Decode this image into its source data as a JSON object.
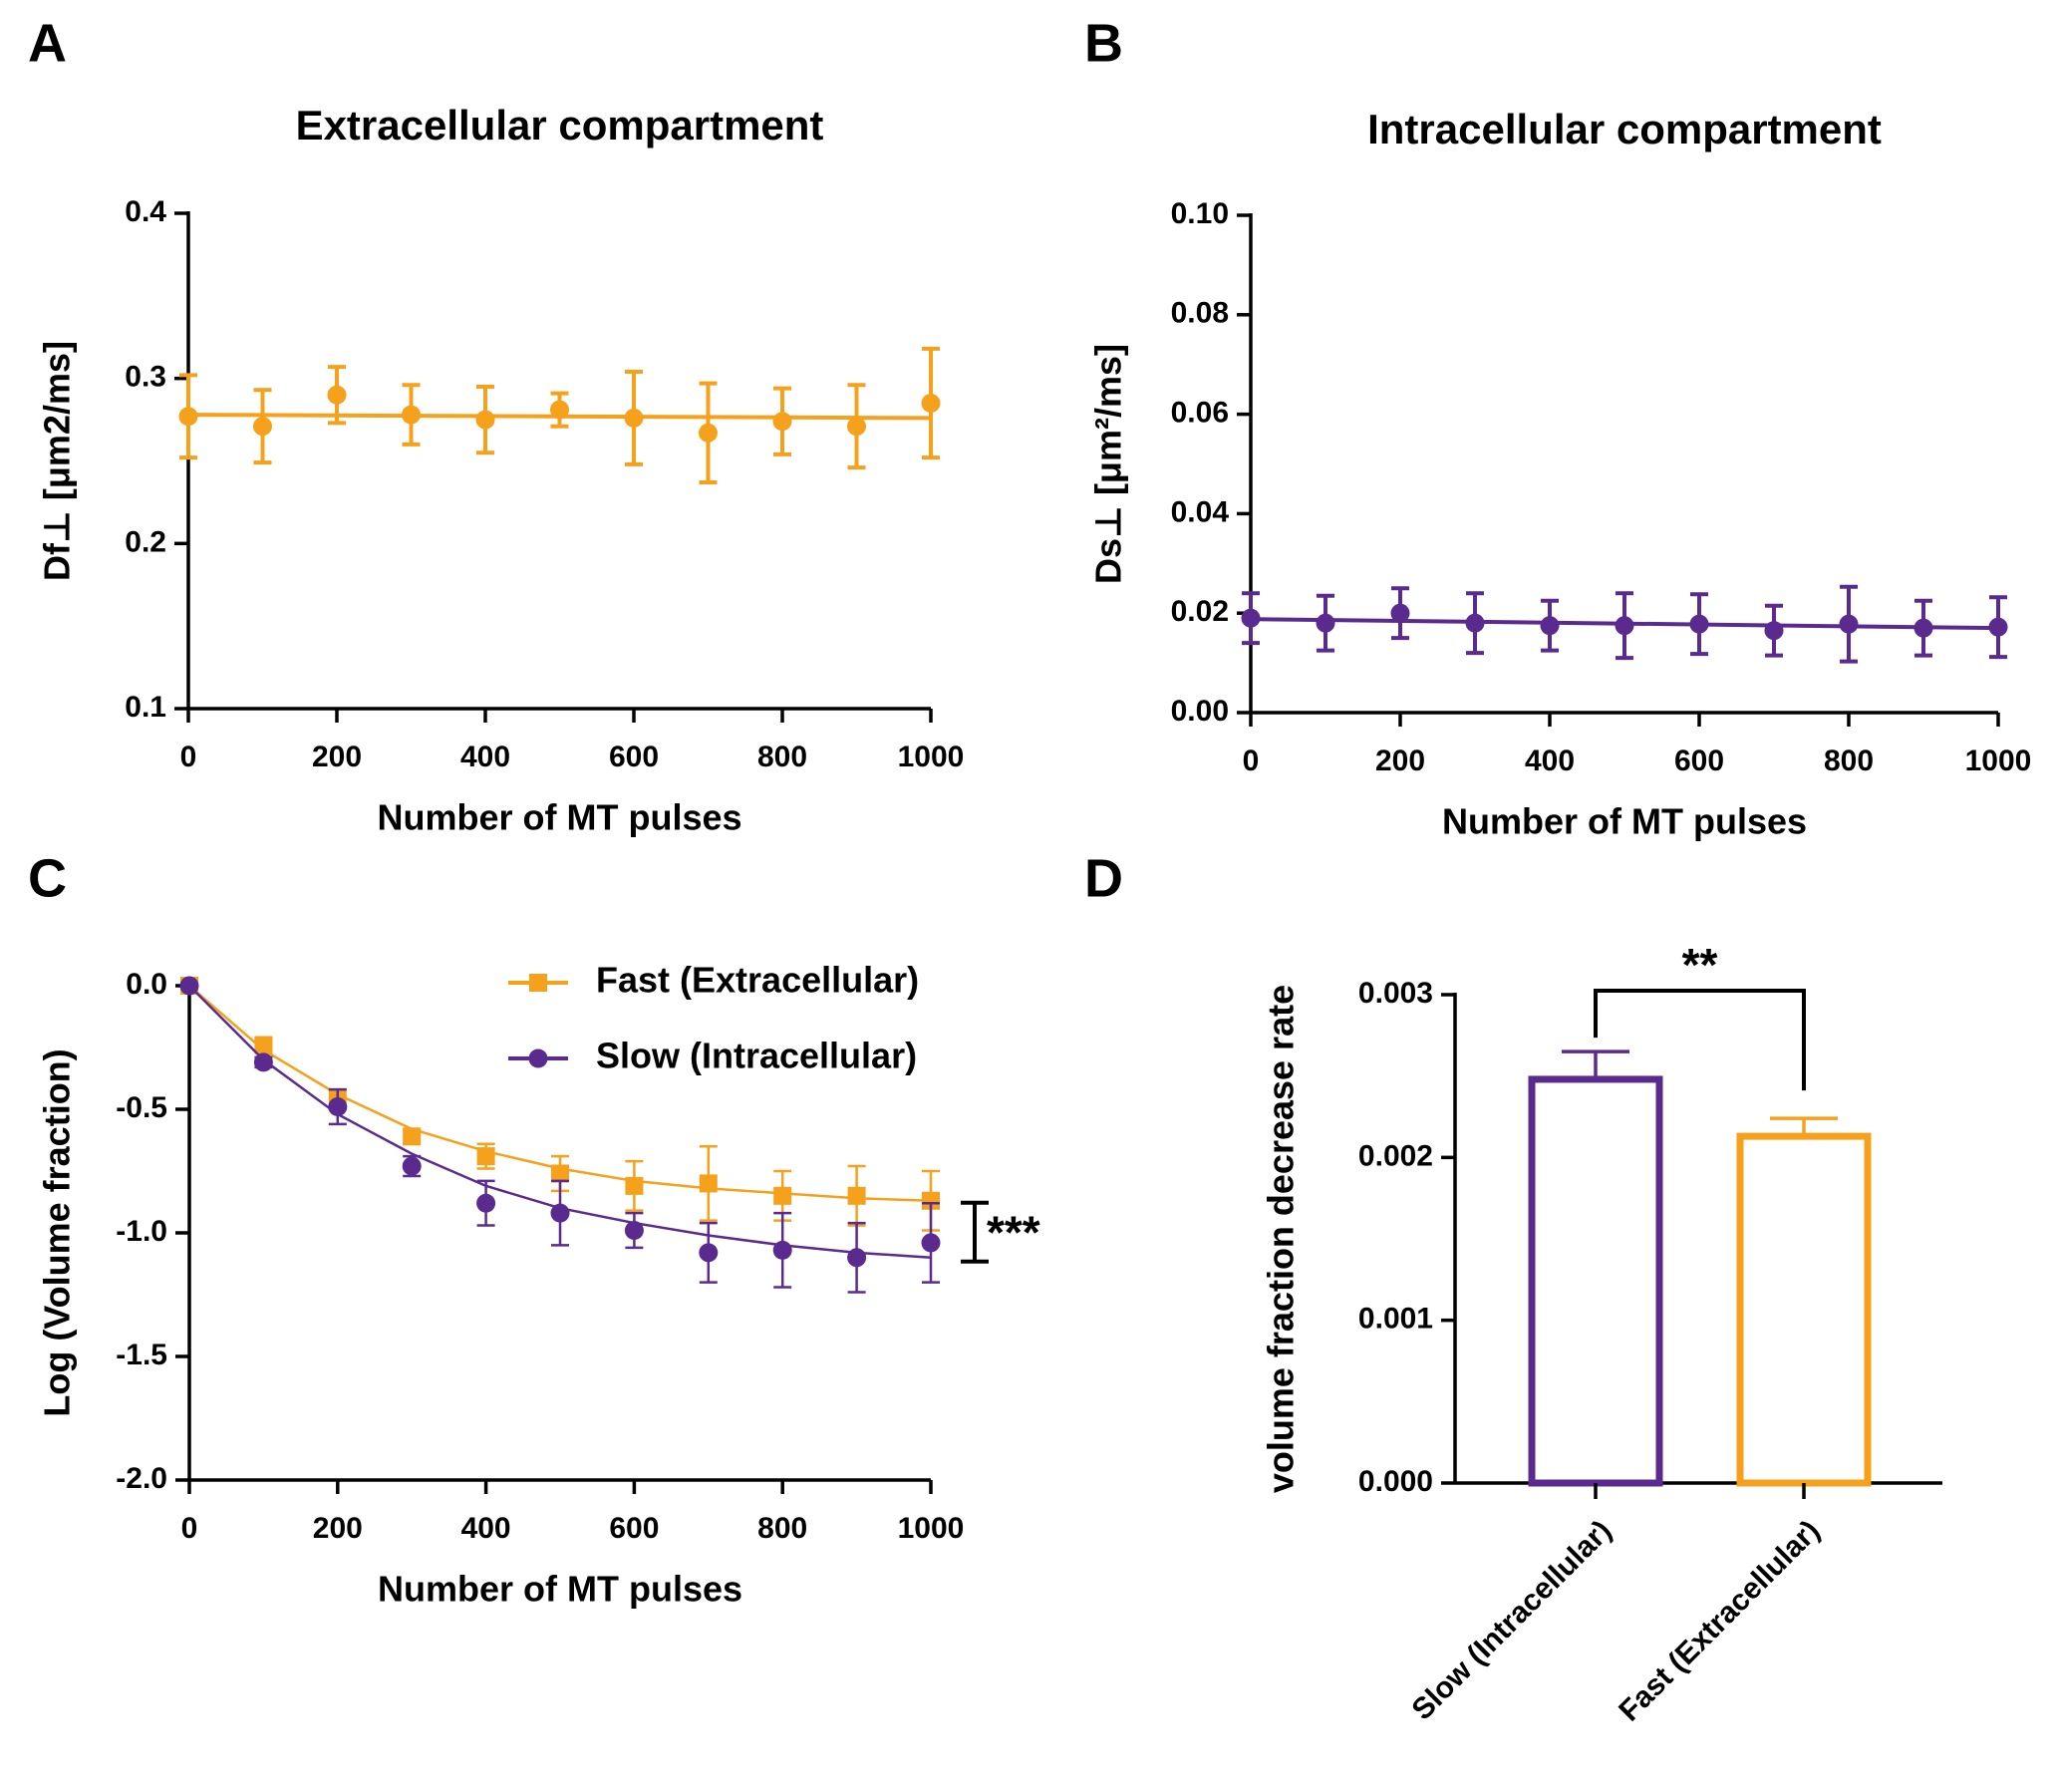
{
  "chart_data": [
    {
      "panel": "A",
      "type": "scatter",
      "title": "Extracellular compartment",
      "x_label": "Number of MT pulses",
      "y_label": "Df⊥ [μm2/ms]",
      "xlim": [
        0,
        1000
      ],
      "ylim": [
        0.1,
        0.4
      ],
      "xticks": [
        0,
        200,
        400,
        600,
        800,
        1000
      ],
      "yticks": [
        0.1,
        0.2,
        0.3,
        0.4
      ],
      "series": [
        {
          "color": "#f5a11c",
          "marker": "circle",
          "x": [
            0,
            100,
            200,
            300,
            400,
            500,
            600,
            700,
            800,
            900,
            1000
          ],
          "values": [
            0.277,
            0.271,
            0.29,
            0.278,
            0.275,
            0.281,
            0.276,
            0.267,
            0.274,
            0.271,
            0.285
          ],
          "errors": [
            0.025,
            0.022,
            0.017,
            0.018,
            0.02,
            0.01,
            0.028,
            0.03,
            0.02,
            0.025,
            0.033
          ],
          "fit_x": [
            0,
            1000
          ],
          "fit_values": [
            0.278,
            0.276
          ]
        }
      ]
    },
    {
      "panel": "B",
      "type": "scatter",
      "title": "Intracellular compartment",
      "x_label": "Number of MT pulses",
      "y_label": "Ds⊥ [μm²/ms]",
      "xlim": [
        0,
        1000
      ],
      "ylim": [
        0,
        0.1
      ],
      "xticks": [
        0,
        200,
        400,
        600,
        800,
        1000
      ],
      "yticks": [
        {
          "value": 0,
          "label": "0.00"
        },
        0.02,
        0.04,
        0.06,
        0.08,
        {
          "value": 0.1,
          "label": "0.10"
        }
      ],
      "series": [
        {
          "color": "#5b2a8e",
          "marker": "circle",
          "x": [
            0,
            100,
            200,
            300,
            400,
            500,
            600,
            700,
            800,
            900,
            1000
          ],
          "values": [
            0.019,
            0.018,
            0.02,
            0.018,
            0.0175,
            0.0175,
            0.0178,
            0.0165,
            0.0178,
            0.017,
            0.0172
          ],
          "errors": [
            0.005,
            0.0055,
            0.005,
            0.006,
            0.005,
            0.0065,
            0.006,
            0.005,
            0.0075,
            0.0055,
            0.006
          ],
          "fit_x": [
            0,
            1000
          ],
          "fit_values": [
            0.0188,
            0.017
          ]
        }
      ]
    },
    {
      "panel": "C",
      "type": "scatter",
      "x_label": "Number of MT pulses",
      "y_label": "Log (Volume fraction)",
      "annotation": "***",
      "xlim": [
        0,
        1000
      ],
      "ylim": [
        -2,
        0
      ],
      "xticks": [
        0,
        200,
        400,
        600,
        800,
        1000
      ],
      "yticks": [
        {
          "value": -2,
          "label": "-2.0"
        },
        -1.5,
        {
          "value": -1,
          "label": "-1.0"
        },
        -0.5,
        {
          "value": 0,
          "label": "0.0"
        }
      ],
      "series": [
        {
          "name": "Fast  (Extracellular)",
          "color": "#f5a11c",
          "marker": "square",
          "x": [
            0,
            100,
            200,
            300,
            400,
            500,
            600,
            700,
            800,
            900,
            1000
          ],
          "values": [
            0,
            -0.24,
            -0.46,
            -0.61,
            -0.69,
            -0.76,
            -0.81,
            -0.8,
            -0.85,
            -0.85,
            -0.87
          ],
          "errors": [
            0,
            0.02,
            0.04,
            0.03,
            0.05,
            0.07,
            0.1,
            0.15,
            0.1,
            0.12,
            0.12
          ],
          "fit_x": [
            0,
            100,
            200,
            300,
            400,
            500,
            600,
            700,
            800,
            900,
            1000
          ],
          "fit_values": [
            0,
            -0.26,
            -0.44,
            -0.58,
            -0.67,
            -0.74,
            -0.79,
            -0.82,
            -0.84,
            -0.86,
            -0.87
          ]
        },
        {
          "name": "Slow (Intracellular)",
          "color": "#5b2a8e",
          "marker": "circle",
          "x": [
            0,
            100,
            200,
            300,
            400,
            500,
            600,
            700,
            800,
            900,
            1000
          ],
          "values": [
            0,
            -0.31,
            -0.49,
            -0.73,
            -0.88,
            -0.92,
            -0.99,
            -1.08,
            -1.07,
            -1.1,
            -1.04
          ],
          "errors": [
            0,
            0.02,
            0.07,
            0.04,
            0.09,
            0.13,
            0.07,
            0.12,
            0.15,
            0.14,
            0.16
          ],
          "fit_x": [
            0,
            100,
            200,
            300,
            400,
            500,
            600,
            700,
            800,
            900,
            1000
          ],
          "fit_values": [
            0,
            -0.3,
            -0.52,
            -0.68,
            -0.81,
            -0.9,
            -0.96,
            -1.01,
            -1.05,
            -1.08,
            -1.1
          ]
        }
      ]
    },
    {
      "panel": "D",
      "type": "bar",
      "y_label": "volume fraction decrease rate",
      "annotation": "**",
      "categories": [
        "Slow (Intracellular)",
        "Fast  (Extracellular)"
      ],
      "values": [
        0.00248,
        0.00213
      ],
      "errors": [
        0.00017,
        0.00011
      ],
      "colors": [
        "#5b2a8e",
        "#f5a11c"
      ],
      "ylim": [
        0,
        0.003
      ],
      "yticks": [
        {
          "value": 0,
          "label": "0.000"
        },
        {
          "value": 0.001,
          "label": "0.001"
        },
        {
          "value": 0.002,
          "label": "0.002"
        },
        {
          "value": 0.003,
          "label": "0.003"
        }
      ]
    }
  ]
}
